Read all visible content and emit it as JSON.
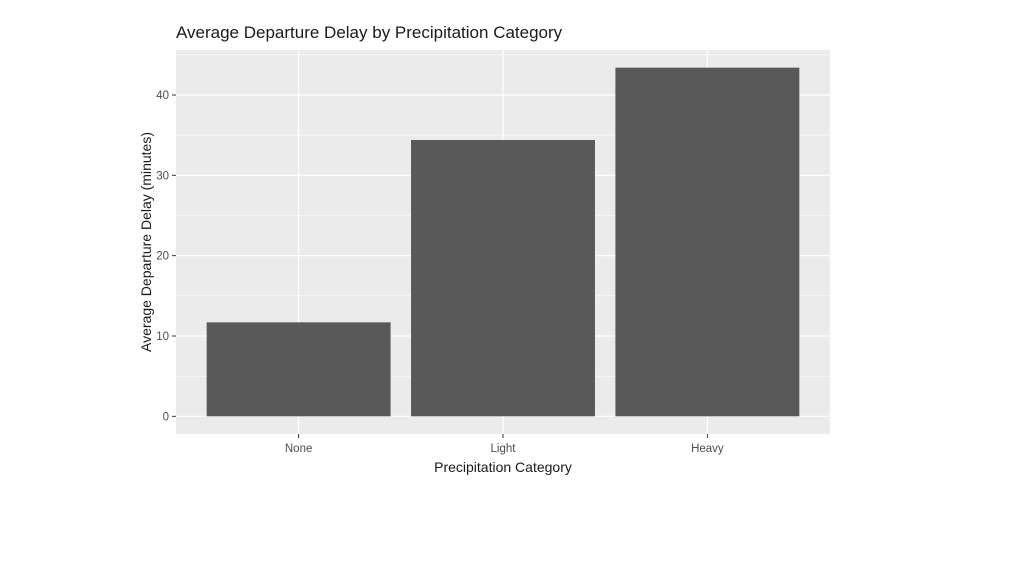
{
  "chart_data": {
    "type": "bar",
    "title": "Average Departure Delay by Precipitation Category",
    "xlabel": "Precipitation Category",
    "ylabel": "Average Departure Delay (minutes)",
    "categories": [
      "None",
      "Light",
      "Heavy"
    ],
    "values": [
      11.7,
      34.4,
      43.4
    ],
    "ylim": [
      -2.2,
      45.6
    ],
    "yticks": [
      0,
      10,
      20,
      30,
      40
    ],
    "grid": true,
    "bar_color": "#595959",
    "panel_color": "#ebebeb",
    "grid_color": "#ffffff"
  }
}
